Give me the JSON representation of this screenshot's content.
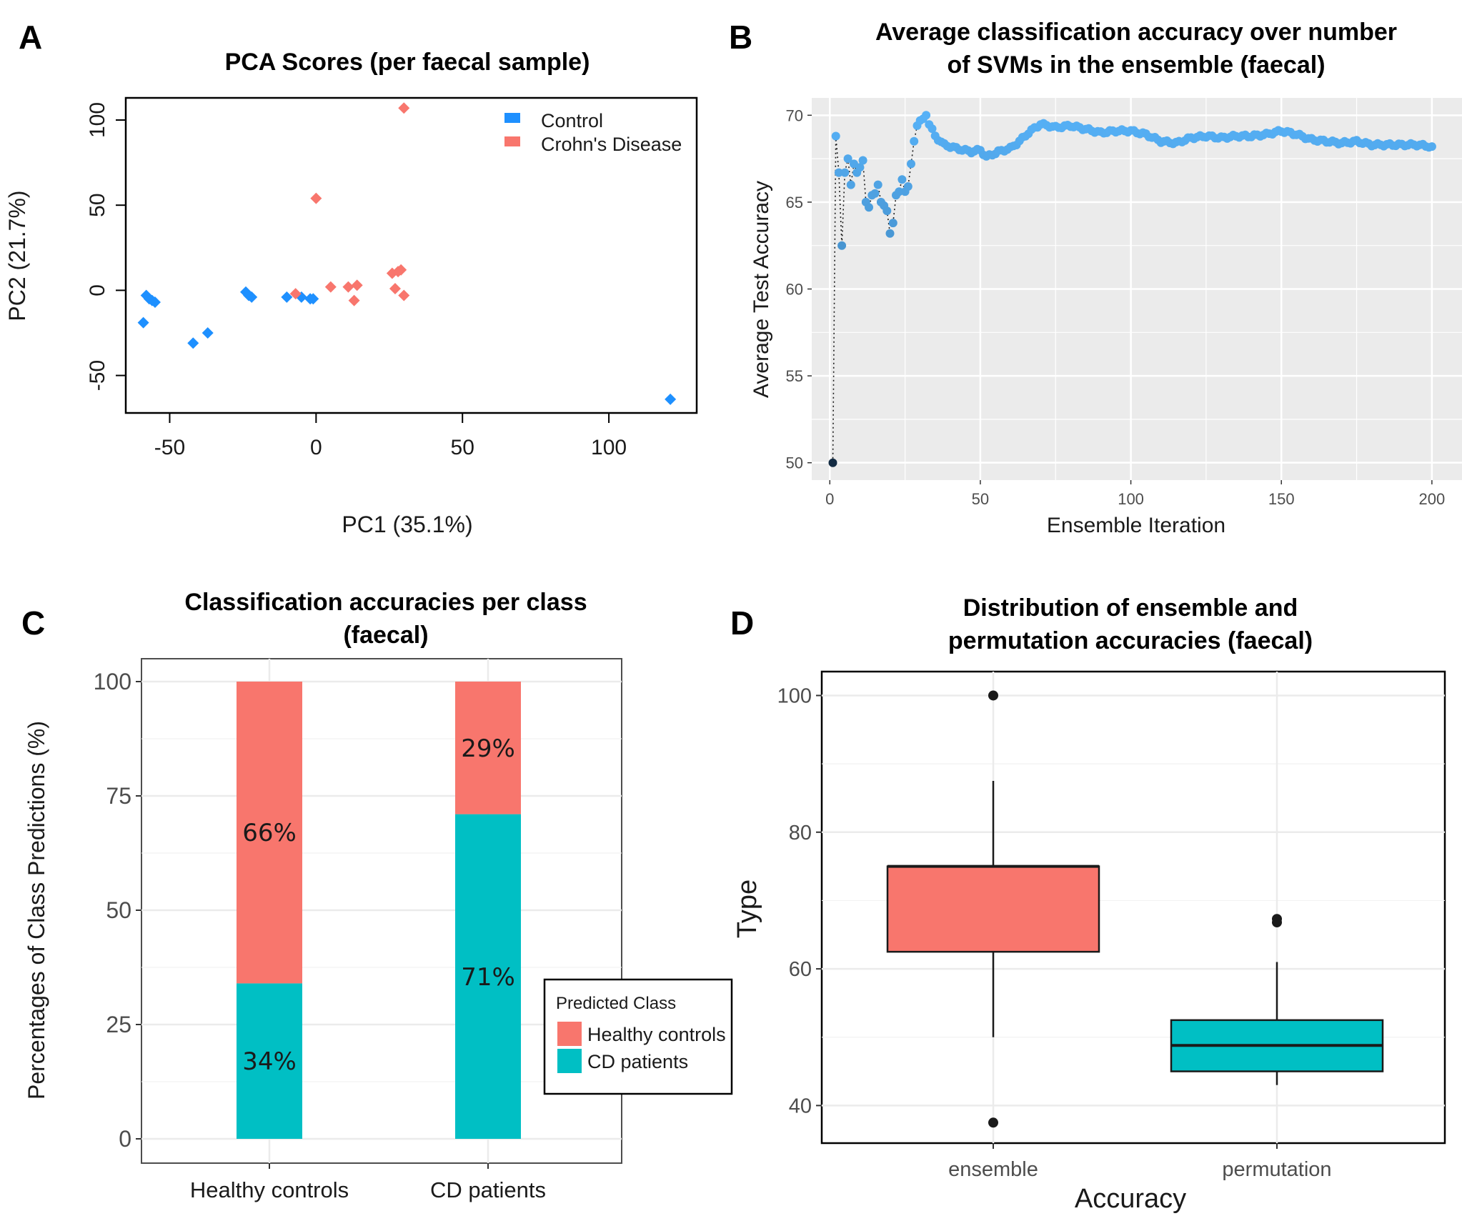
{
  "panels": {
    "A": {
      "letter": "A"
    },
    "B": {
      "letter": "B"
    },
    "C": {
      "letter": "C"
    },
    "D": {
      "letter": "D"
    }
  },
  "chart_data": [
    {
      "id": "A",
      "type": "scatter",
      "title": "PCA Scores (per faecal sample)",
      "xlabel": "PC1 (35.1%)",
      "ylabel": "PC2 (21.7%)",
      "xlim": [
        -65,
        130
      ],
      "ylim": [
        -72,
        113
      ],
      "xticks": [
        -50,
        0,
        50,
        100
      ],
      "yticks": [
        -50,
        0,
        50,
        100
      ],
      "grid": false,
      "legend_position": "top-right",
      "series": [
        {
          "name": "Control",
          "color": "#1e90ff",
          "points": [
            [
              -58,
              -3
            ],
            [
              -57,
              -5
            ],
            [
              -56,
              -6
            ],
            [
              -55,
              -7
            ],
            [
              -59,
              -19
            ],
            [
              -42,
              -31
            ],
            [
              -37,
              -25
            ],
            [
              -24,
              -1
            ],
            [
              -23,
              -3
            ],
            [
              -22,
              -4
            ],
            [
              -10,
              -4
            ],
            [
              -5,
              -4
            ],
            [
              -2,
              -5
            ],
            [
              -1,
              -5
            ],
            [
              121,
              -64
            ]
          ]
        },
        {
          "name": "Crohn's Disease",
          "color": "#f8766d",
          "points": [
            [
              -7,
              -2
            ],
            [
              0,
              54
            ],
            [
              5,
              2
            ],
            [
              11,
              2
            ],
            [
              13,
              -6
            ],
            [
              14,
              3
            ],
            [
              26,
              10
            ],
            [
              27,
              1
            ],
            [
              28,
              11
            ],
            [
              29,
              12
            ],
            [
              30,
              -3
            ],
            [
              30,
              107
            ]
          ]
        }
      ]
    },
    {
      "id": "B",
      "type": "line",
      "title": "Average classification accuracy over number of SVMs in the ensemble (faecal)",
      "title_lines": [
        "Average classification accuracy over number",
        "of SVMs in the ensemble (faecal)"
      ],
      "xlabel": "Ensemble Iteration",
      "ylabel": "Average Test Accuracy",
      "xlim": [
        -6,
        210
      ],
      "ylim": [
        49,
        71
      ],
      "xticks": [
        0,
        50,
        100,
        150,
        200
      ],
      "yticks": [
        50,
        55,
        60,
        65,
        70
      ],
      "grid": true,
      "line_style": "dotted",
      "color_low": "#132b43",
      "color_high": "#56b1f7",
      "x": [
        1,
        2,
        3,
        4,
        5,
        6,
        7,
        8,
        9,
        10,
        11,
        12,
        13,
        14,
        15,
        16,
        17,
        18,
        19,
        20,
        21,
        22,
        23,
        24,
        25,
        26,
        27,
        28,
        29,
        30,
        31,
        32
      ],
      "values": [
        50.0,
        68.8,
        66.7,
        62.5,
        66.7,
        67.5,
        66.0,
        67.2,
        66.7,
        67.0,
        67.4,
        65.0,
        64.7,
        65.4,
        65.5,
        66.0,
        65.0,
        64.8,
        64.5,
        63.2,
        63.8,
        65.4,
        65.6,
        66.3,
        65.6,
        65.9,
        67.2,
        68.5,
        69.4,
        69.7,
        69.8,
        70.0
      ],
      "tail_anchors": [
        [
          33,
          69.5
        ],
        [
          35,
          68.8
        ],
        [
          38,
          68.3
        ],
        [
          42,
          68.1
        ],
        [
          47,
          67.9
        ],
        [
          50,
          68.0
        ],
        [
          52,
          67.6
        ],
        [
          56,
          67.9
        ],
        [
          60,
          68.1
        ],
        [
          63,
          68.5
        ],
        [
          66,
          69.0
        ],
        [
          70,
          69.5
        ],
        [
          75,
          69.3
        ],
        [
          80,
          69.4
        ],
        [
          85,
          69.2
        ],
        [
          90,
          69.0
        ],
        [
          95,
          69.1
        ],
        [
          100,
          69.1
        ],
        [
          105,
          68.9
        ],
        [
          110,
          68.5
        ],
        [
          115,
          68.4
        ],
        [
          120,
          68.7
        ],
        [
          125,
          68.8
        ],
        [
          130,
          68.7
        ],
        [
          135,
          68.8
        ],
        [
          140,
          68.8
        ],
        [
          145,
          68.9
        ],
        [
          150,
          69.1
        ],
        [
          155,
          68.9
        ],
        [
          160,
          68.6
        ],
        [
          165,
          68.5
        ],
        [
          170,
          68.4
        ],
        [
          175,
          68.5
        ],
        [
          180,
          68.3
        ],
        [
          185,
          68.3
        ],
        [
          190,
          68.3
        ],
        [
          195,
          68.3
        ],
        [
          200,
          68.2
        ]
      ]
    },
    {
      "id": "C",
      "type": "bar",
      "stacked": true,
      "title": "Classification accuracies per class (faecal)",
      "title_lines": [
        "Classification accuracies per class",
        "(faecal)"
      ],
      "xlabel": "",
      "ylabel": "Percentages of Class Predictions (%)",
      "categories": [
        "Healthy controls",
        "CD patients"
      ],
      "ylim": [
        0,
        104
      ],
      "yticks": [
        0,
        25,
        50,
        75,
        100
      ],
      "grid": true,
      "legend_title": "Predicted Class",
      "legend_position": "right",
      "series": [
        {
          "name": "CD patients",
          "color": "#00bfc4",
          "values": [
            34,
            71
          ],
          "labels": [
            "34%",
            "71%"
          ]
        },
        {
          "name": "Healthy controls",
          "color": "#f8766d",
          "values": [
            66,
            29
          ],
          "labels": [
            "66%",
            "29%"
          ]
        }
      ],
      "legend_order": [
        "Healthy controls",
        "CD patients"
      ]
    },
    {
      "id": "D",
      "type": "box",
      "title": "Distribution of ensemble and permutation accuracies (faecal)",
      "title_lines": [
        "Distribution of ensemble and",
        "permutation accuracies (faecal)"
      ],
      "xlabel": "Accuracy",
      "ylabel": "Type",
      "categories": [
        "ensemble",
        "permutation"
      ],
      "ylim": [
        34.5,
        103.5
      ],
      "yticks": [
        40,
        60,
        80,
        100
      ],
      "grid": true,
      "boxes": [
        {
          "name": "ensemble",
          "color": "#f8766d",
          "q1": 62.5,
          "median": 75,
          "q3": 75,
          "whisker_low": 50,
          "whisker_high": 87.5,
          "outliers": [
            100,
            37.5
          ]
        },
        {
          "name": "permutation",
          "color": "#00bfc4",
          "q1": 45,
          "median": 48.8,
          "q3": 52.5,
          "whisker_low": 43,
          "whisker_high": 61,
          "outliers": [
            67.3,
            66.8
          ]
        }
      ]
    }
  ]
}
